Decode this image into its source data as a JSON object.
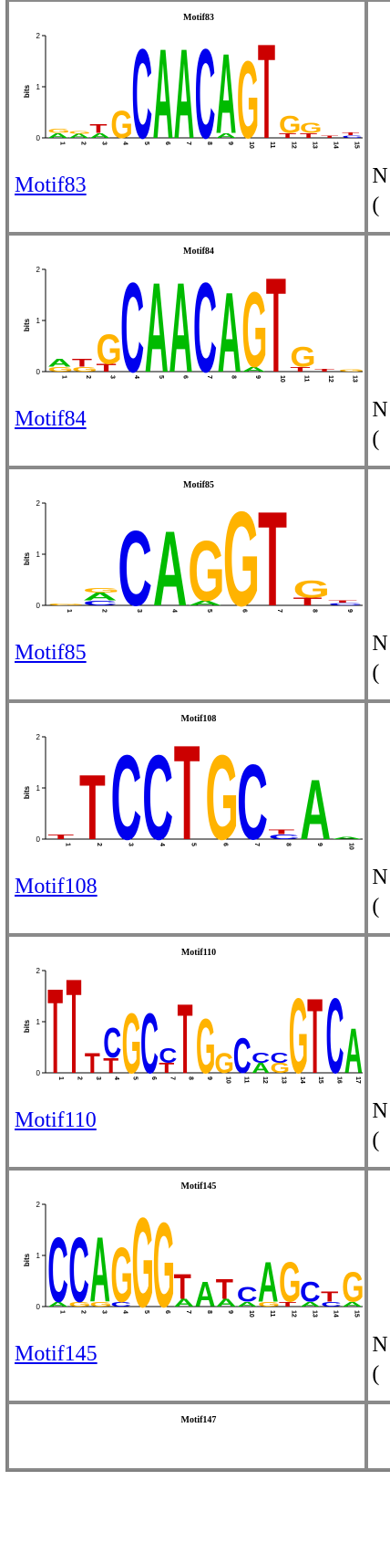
{
  "rows": [
    {
      "name": "Motif83",
      "link": "Motif83",
      "ylabel": "bits",
      "yticks": [
        "0",
        "1",
        "2"
      ],
      "positions": 15,
      "letters": [
        {
          "pos": 1,
          "stack": [
            {
              "c": "A",
              "h": 0.1
            },
            {
              "c": "G",
              "h": 0.08
            }
          ]
        },
        {
          "pos": 2,
          "stack": [
            {
              "c": "A",
              "h": 0.08
            },
            {
              "c": "G",
              "h": 0.06
            }
          ]
        },
        {
          "pos": 3,
          "stack": [
            {
              "c": "A",
              "h": 0.1
            },
            {
              "c": "T",
              "h": 0.18
            }
          ]
        },
        {
          "pos": 4,
          "stack": [
            {
              "c": "G",
              "h": 0.55
            }
          ]
        },
        {
          "pos": 5,
          "stack": [
            {
              "c": "C",
              "h": 1.8
            }
          ]
        },
        {
          "pos": 6,
          "stack": [
            {
              "c": "A",
              "h": 1.8
            }
          ]
        },
        {
          "pos": 7,
          "stack": [
            {
              "c": "A",
              "h": 1.8
            }
          ]
        },
        {
          "pos": 8,
          "stack": [
            {
              "c": "C",
              "h": 1.8
            }
          ]
        },
        {
          "pos": 9,
          "stack": [
            {
              "c": "A",
              "h": 0.1
            },
            {
              "c": "A",
              "h": 1.6
            }
          ]
        },
        {
          "pos": 10,
          "stack": [
            {
              "c": "G",
              "h": 1.55
            }
          ]
        },
        {
          "pos": 11,
          "stack": [
            {
              "c": "T",
              "h": 1.9
            }
          ]
        },
        {
          "pos": 12,
          "stack": [
            {
              "c": "T",
              "h": 0.1
            },
            {
              "c": "G",
              "h": 0.35
            }
          ]
        },
        {
          "pos": 13,
          "stack": [
            {
              "c": "T",
              "h": 0.1
            },
            {
              "c": "G",
              "h": 0.2
            }
          ]
        },
        {
          "pos": 14,
          "stack": [
            {
              "c": "T",
              "h": 0.05
            }
          ]
        },
        {
          "pos": 15,
          "stack": [
            {
              "c": "C",
              "h": 0.05
            },
            {
              "c": "T",
              "h": 0.06
            }
          ]
        }
      ]
    },
    {
      "name": "Motif84",
      "link": "Motif84",
      "ylabel": "bits",
      "yticks": [
        "0",
        "1",
        "2"
      ],
      "positions": 13,
      "letters": [
        {
          "pos": 1,
          "stack": [
            {
              "c": "G",
              "h": 0.1
            },
            {
              "c": "A",
              "h": 0.15
            }
          ]
        },
        {
          "pos": 2,
          "stack": [
            {
              "c": "G",
              "h": 0.1
            },
            {
              "c": "T",
              "h": 0.15
            }
          ]
        },
        {
          "pos": 3,
          "stack": [
            {
              "c": "T",
              "h": 0.15
            },
            {
              "c": "G",
              "h": 0.6
            }
          ]
        },
        {
          "pos": 4,
          "stack": [
            {
              "c": "C",
              "h": 1.8
            }
          ]
        },
        {
          "pos": 5,
          "stack": [
            {
              "c": "A",
              "h": 1.8
            }
          ]
        },
        {
          "pos": 6,
          "stack": [
            {
              "c": "A",
              "h": 1.8
            }
          ]
        },
        {
          "pos": 7,
          "stack": [
            {
              "c": "C",
              "h": 1.8
            }
          ]
        },
        {
          "pos": 8,
          "stack": [
            {
              "c": "A",
              "h": 1.6
            }
          ]
        },
        {
          "pos": 9,
          "stack": [
            {
              "c": "A",
              "h": 0.1
            },
            {
              "c": "G",
              "h": 1.5
            }
          ]
        },
        {
          "pos": 10,
          "stack": [
            {
              "c": "T",
              "h": 1.9
            }
          ]
        },
        {
          "pos": 11,
          "stack": [
            {
              "c": "T",
              "h": 0.1
            },
            {
              "c": "G",
              "h": 0.4
            }
          ]
        },
        {
          "pos": 12,
          "stack": [
            {
              "c": "T",
              "h": 0.06
            }
          ]
        },
        {
          "pos": 13,
          "stack": [
            {
              "c": "G",
              "h": 0.05
            }
          ]
        }
      ]
    },
    {
      "name": "Motif85",
      "link": "Motif85",
      "ylabel": "bits",
      "yticks": [
        "0",
        "1",
        "2"
      ],
      "positions": 9,
      "letters": [
        {
          "pos": 1,
          "stack": [
            {
              "c": "G",
              "h": 0.04
            }
          ]
        },
        {
          "pos": 2,
          "stack": [
            {
              "c": "C",
              "h": 0.1
            },
            {
              "c": "A",
              "h": 0.15
            },
            {
              "c": "G",
              "h": 0.1
            }
          ]
        },
        {
          "pos": 3,
          "stack": [
            {
              "c": "C",
              "h": 1.5
            }
          ]
        },
        {
          "pos": 4,
          "stack": [
            {
              "c": "A",
              "h": 1.5
            }
          ]
        },
        {
          "pos": 5,
          "stack": [
            {
              "c": "A",
              "h": 0.1
            },
            {
              "c": "G",
              "h": 1.2
            }
          ]
        },
        {
          "pos": 6,
          "stack": [
            {
              "c": "G",
              "h": 1.9
            }
          ]
        },
        {
          "pos": 7,
          "stack": [
            {
              "c": "T",
              "h": 1.9
            }
          ]
        },
        {
          "pos": 8,
          "stack": [
            {
              "c": "T",
              "h": 0.15
            },
            {
              "c": "G",
              "h": 0.35
            }
          ]
        },
        {
          "pos": 9,
          "stack": [
            {
              "c": "C",
              "h": 0.05
            },
            {
              "c": "T",
              "h": 0.05
            }
          ]
        }
      ]
    },
    {
      "name": "Motif108",
      "link": "Motif108",
      "ylabel": "bits",
      "yticks": [
        "0",
        "1",
        "2"
      ],
      "positions": 10,
      "letters": [
        {
          "pos": 1,
          "stack": [
            {
              "c": "T",
              "h": 0.1
            }
          ]
        },
        {
          "pos": 2,
          "stack": [
            {
              "c": "T",
              "h": 1.3
            }
          ]
        },
        {
          "pos": 3,
          "stack": [
            {
              "c": "C",
              "h": 1.7
            }
          ]
        },
        {
          "pos": 4,
          "stack": [
            {
              "c": "C",
              "h": 1.7
            }
          ]
        },
        {
          "pos": 5,
          "stack": [
            {
              "c": "T",
              "h": 1.9
            }
          ]
        },
        {
          "pos": 6,
          "stack": [
            {
              "c": "G",
              "h": 1.7
            }
          ]
        },
        {
          "pos": 7,
          "stack": [
            {
              "c": "C",
              "h": 1.5
            }
          ]
        },
        {
          "pos": 8,
          "stack": [
            {
              "c": "C",
              "h": 0.1
            },
            {
              "c": "T",
              "h": 0.1
            }
          ]
        },
        {
          "pos": 9,
          "stack": [
            {
              "c": "A",
              "h": 1.2
            }
          ]
        },
        {
          "pos": 10,
          "stack": [
            {
              "c": "A",
              "h": 0.05
            }
          ]
        }
      ]
    },
    {
      "name": "Motif110",
      "link": "Motif110",
      "ylabel": "bits",
      "yticks": [
        "0",
        "1",
        "2"
      ],
      "positions": 17,
      "letters": [
        {
          "pos": 1,
          "stack": [
            {
              "c": "T",
              "h": 1.7
            }
          ]
        },
        {
          "pos": 2,
          "stack": [
            {
              "c": "T",
              "h": 1.9
            }
          ]
        },
        {
          "pos": 3,
          "stack": [
            {
              "c": "T",
              "h": 0.4
            }
          ]
        },
        {
          "pos": 4,
          "stack": [
            {
              "c": "T",
              "h": 0.3
            },
            {
              "c": "C",
              "h": 0.6
            }
          ]
        },
        {
          "pos": 5,
          "stack": [
            {
              "c": "G",
              "h": 1.2
            }
          ]
        },
        {
          "pos": 6,
          "stack": [
            {
              "c": "C",
              "h": 1.2
            }
          ]
        },
        {
          "pos": 7,
          "stack": [
            {
              "c": "T",
              "h": 0.2
            },
            {
              "c": "C",
              "h": 0.3
            }
          ]
        },
        {
          "pos": 8,
          "stack": [
            {
              "c": "T",
              "h": 1.4
            }
          ]
        },
        {
          "pos": 9,
          "stack": [
            {
              "c": "G",
              "h": 1.1
            }
          ]
        },
        {
          "pos": 10,
          "stack": [
            {
              "c": "G",
              "h": 0.4
            }
          ]
        },
        {
          "pos": 11,
          "stack": [
            {
              "c": "C",
              "h": 0.7
            }
          ]
        },
        {
          "pos": 12,
          "stack": [
            {
              "c": "A",
              "h": 0.2
            },
            {
              "c": "C",
              "h": 0.2
            }
          ]
        },
        {
          "pos": 13,
          "stack": [
            {
              "c": "G",
              "h": 0.2
            },
            {
              "c": "C",
              "h": 0.2
            }
          ]
        },
        {
          "pos": 14,
          "stack": [
            {
              "c": "G",
              "h": 1.5
            }
          ]
        },
        {
          "pos": 15,
          "stack": [
            {
              "c": "T",
              "h": 1.5
            }
          ]
        },
        {
          "pos": 16,
          "stack": [
            {
              "c": "C",
              "h": 1.5
            }
          ]
        },
        {
          "pos": 17,
          "stack": [
            {
              "c": "A",
              "h": 0.9
            }
          ]
        }
      ]
    },
    {
      "name": "Motif145",
      "link": "Motif145",
      "ylabel": "bits",
      "yticks": [
        "0",
        "1",
        "2"
      ],
      "positions": 15,
      "letters": [
        {
          "pos": 1,
          "stack": [
            {
              "c": "A",
              "h": 0.1
            },
            {
              "c": "C",
              "h": 1.3
            }
          ]
        },
        {
          "pos": 2,
          "stack": [
            {
              "c": "G",
              "h": 0.1
            },
            {
              "c": "C",
              "h": 1.3
            }
          ]
        },
        {
          "pos": 3,
          "stack": [
            {
              "c": "G",
              "h": 0.1
            },
            {
              "c": "A",
              "h": 1.3
            }
          ]
        },
        {
          "pos": 4,
          "stack": [
            {
              "c": "C",
              "h": 0.1
            },
            {
              "c": "G",
              "h": 1.1
            }
          ]
        },
        {
          "pos": 5,
          "stack": [
            {
              "c": "G",
              "h": 1.8
            }
          ]
        },
        {
          "pos": 6,
          "stack": [
            {
              "c": "G",
              "h": 1.7
            }
          ]
        },
        {
          "pos": 7,
          "stack": [
            {
              "c": "A",
              "h": 0.15
            },
            {
              "c": "T",
              "h": 0.5
            }
          ]
        },
        {
          "pos": 8,
          "stack": [
            {
              "c": "A",
              "h": 0.5
            }
          ]
        },
        {
          "pos": 9,
          "stack": [
            {
              "c": "A",
              "h": 0.15
            },
            {
              "c": "T",
              "h": 0.4
            }
          ]
        },
        {
          "pos": 10,
          "stack": [
            {
              "c": "A",
              "h": 0.1
            },
            {
              "c": "C",
              "h": 0.3
            }
          ]
        },
        {
          "pos": 11,
          "stack": [
            {
              "c": "G",
              "h": 0.1
            },
            {
              "c": "A",
              "h": 0.8
            }
          ]
        },
        {
          "pos": 12,
          "stack": [
            {
              "c": "T",
              "h": 0.1
            },
            {
              "c": "G",
              "h": 0.8
            }
          ]
        },
        {
          "pos": 13,
          "stack": [
            {
              "c": "A",
              "h": 0.1
            },
            {
              "c": "C",
              "h": 0.4
            }
          ]
        },
        {
          "pos": 14,
          "stack": [
            {
              "c": "C",
              "h": 0.1
            },
            {
              "c": "T",
              "h": 0.2
            }
          ]
        },
        {
          "pos": 15,
          "stack": [
            {
              "c": "A",
              "h": 0.1
            },
            {
              "c": "G",
              "h": 0.6
            }
          ]
        }
      ]
    },
    {
      "name": "Motif147",
      "link": "",
      "ylabel": "",
      "yticks": [],
      "positions": 0,
      "letters": []
    }
  ],
  "clipped": {
    "line1": "N",
    "line2": "("
  },
  "colors": {
    "A": "#00bb00",
    "C": "#0000ee",
    "G": "#ffb300",
    "T": "#cc0000"
  }
}
